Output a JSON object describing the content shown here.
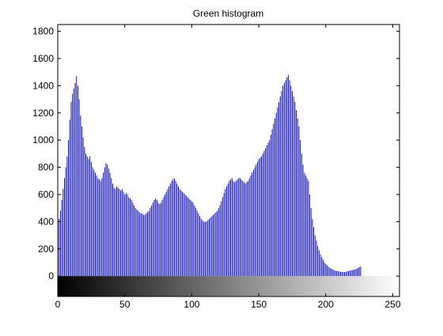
{
  "chart_data": {
    "type": "bar",
    "title": "Green histogram",
    "xlabel": "",
    "ylabel": "",
    "xlim": [
      0,
      255
    ],
    "ylim": [
      -150,
      1850
    ],
    "xticks": [
      0,
      50,
      100,
      150,
      200,
      250
    ],
    "yticks": [
      0,
      200,
      400,
      600,
      800,
      1000,
      1200,
      1400,
      1600,
      1800
    ],
    "grid": false,
    "bar_color": "#0000cc",
    "colorbar": "grayscale gradient from black (0) to white (255) below the zero line",
    "series": [
      {
        "x_start": 0,
        "x_step": 1,
        "values": [
          350,
          420,
          480,
          560,
          640,
          720,
          800,
          880,
          1000,
          1150,
          1280,
          1340,
          1380,
          1420,
          1470,
          1400,
          1300,
          1180,
          1100,
          1020,
          950,
          900,
          880,
          860,
          880,
          840,
          800,
          780,
          760,
          740,
          720,
          710,
          700,
          720,
          760,
          800,
          830,
          820,
          790,
          760,
          720,
          680,
          650,
          640,
          660,
          650,
          640,
          630,
          640,
          620,
          600,
          610,
          600,
          580,
          570,
          560,
          540,
          520,
          500,
          490,
          480,
          470,
          460,
          460,
          450,
          450,
          460,
          470,
          480,
          500,
          520,
          540,
          560,
          570,
          560,
          540,
          530,
          540,
          560,
          580,
          600,
          620,
          640,
          660,
          680,
          700,
          710,
          720,
          700,
          680,
          660,
          640,
          630,
          620,
          610,
          600,
          590,
          580,
          570,
          560,
          550,
          540,
          520,
          500,
          480,
          460,
          440,
          420,
          410,
          400,
          400,
          400,
          410,
          420,
          430,
          440,
          450,
          460,
          470,
          480,
          500,
          520,
          550,
          580,
          610,
          640,
          660,
          680,
          700,
          710,
          720,
          700,
          690,
          700,
          710,
          720,
          720,
          710,
          700,
          690,
          680,
          690,
          700,
          720,
          740,
          760,
          780,
          800,
          820,
          840,
          860,
          870,
          880,
          900,
          920,
          940,
          960,
          980,
          1000,
          1040,
          1080,
          1120,
          1160,
          1200,
          1240,
          1280,
          1320,
          1360,
          1400,
          1420,
          1440,
          1460,
          1480,
          1440,
          1400,
          1360,
          1320,
          1280,
          1220,
          1160,
          1100,
          1000,
          900,
          820,
          760,
          740,
          720,
          700,
          600,
          500,
          420,
          360,
          300,
          260,
          220,
          190,
          160,
          140,
          120,
          100,
          90,
          80,
          70,
          60,
          55,
          50,
          45,
          40,
          38,
          36,
          34,
          32,
          30,
          30,
          30,
          32,
          35,
          38,
          40,
          42,
          45,
          48,
          50,
          55,
          60,
          65,
          70
        ]
      }
    ]
  }
}
